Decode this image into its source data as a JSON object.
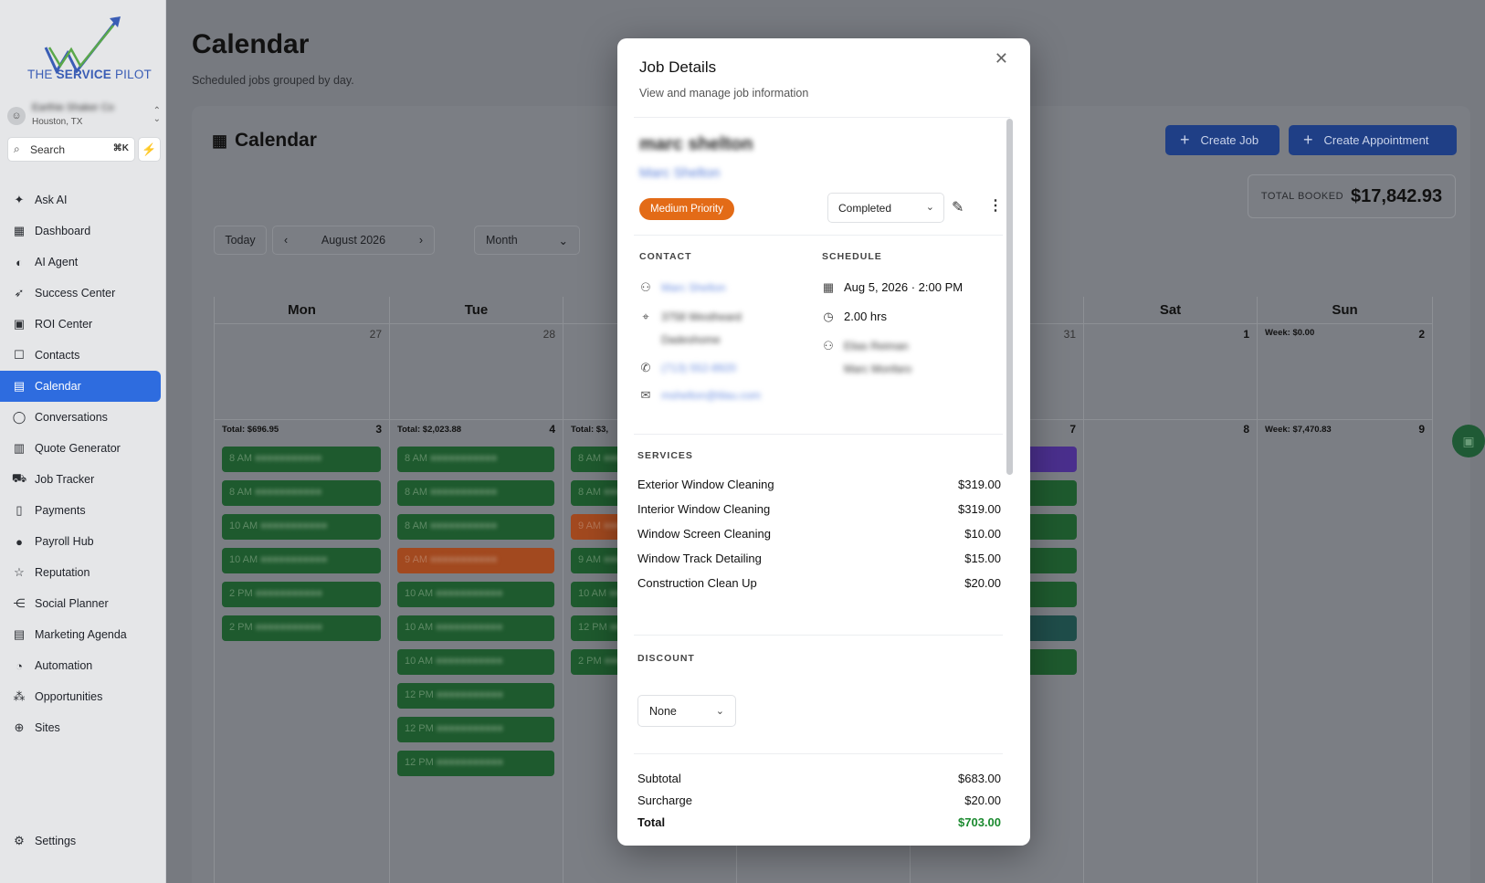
{
  "brand": {
    "name_prefix": "THE ",
    "name_bold": "SERVICE",
    "name_suffix": " PILOT",
    "accent": "#2e6cdf"
  },
  "account": {
    "name": "Earthie Shaker Co",
    "city": "Houston, TX"
  },
  "search": {
    "label": "Search",
    "shortcut": "⌘K"
  },
  "nav": [
    {
      "label": "Ask AI",
      "icon": "sparkle-icon",
      "glyph": "✦"
    },
    {
      "label": "Dashboard",
      "icon": "dashboard-icon",
      "glyph": "▦"
    },
    {
      "label": "AI Agent",
      "icon": "brain-icon",
      "glyph": "◐"
    },
    {
      "label": "Success Center",
      "icon": "rocket-icon",
      "glyph": "➶"
    },
    {
      "label": "ROI Center",
      "icon": "ai-badge-icon",
      "glyph": "▣"
    },
    {
      "label": "Contacts",
      "icon": "contacts-icon",
      "glyph": "☐"
    },
    {
      "label": "Calendar",
      "icon": "calendar-icon",
      "glyph": "▤",
      "active": true
    },
    {
      "label": "Conversations",
      "icon": "chat-icon",
      "glyph": "◯"
    },
    {
      "label": "Quote Generator",
      "icon": "quote-icon",
      "glyph": "▥"
    },
    {
      "label": "Job Tracker",
      "icon": "tracker-icon",
      "glyph": "⛟"
    },
    {
      "label": "Payments",
      "icon": "receipt-icon",
      "glyph": "▯"
    },
    {
      "label": "Payroll Hub",
      "icon": "payroll-icon",
      "glyph": "●"
    },
    {
      "label": "Reputation",
      "icon": "star-icon",
      "glyph": "☆"
    },
    {
      "label": "Social Planner",
      "icon": "share-icon",
      "glyph": "⋲"
    },
    {
      "label": "Marketing Agenda",
      "icon": "agenda-icon",
      "glyph": "▤"
    },
    {
      "label": "Automation",
      "icon": "automation-icon",
      "glyph": "◔"
    },
    {
      "label": "Opportunities",
      "icon": "network-icon",
      "glyph": "⁂"
    },
    {
      "label": "Sites",
      "icon": "globe-icon",
      "glyph": "⊕"
    }
  ],
  "settings": {
    "label": "Settings",
    "glyph": "⚙"
  },
  "page": {
    "title": "Calendar",
    "subtitle": "Scheduled jobs grouped by day."
  },
  "calendar": {
    "card_title": "Calendar",
    "create_job": "Create Job",
    "create_appointment": "Create Appointment",
    "total_booked_label": "TOTAL BOOKED",
    "total_booked_value": "$17,842.93",
    "today": "Today",
    "period": "August 2026",
    "view": "Month",
    "days": [
      "Mon",
      "Tue",
      "",
      "",
      "",
      "Sat",
      "Sun"
    ],
    "week1_nums": [
      "27",
      "28",
      "",
      "",
      "31",
      "1",
      "2"
    ],
    "week1_total_sun": "Week: $0.00",
    "week2_nums": [
      "3",
      "4",
      "",
      "",
      "7",
      "8",
      "9"
    ],
    "week2_totals": [
      "Total: $696.95",
      "Total: $2,023.88",
      "Total: $3,",
      "",
      "",
      "",
      "Week: $7,470.83"
    ],
    "events_mon": [
      "8 AM",
      "8 AM",
      "10 AM",
      "10 AM",
      "2 PM",
      "2 PM"
    ],
    "events_tue": [
      "8 AM",
      "8 AM",
      "8 AM",
      "9 AM",
      "10 AM",
      "10 AM",
      "10 AM",
      "12 PM",
      "12 PM",
      "12 PM"
    ],
    "events_wed": [
      "8 AM",
      "8 AM",
      "9 AM",
      "9 AM",
      "10 AM",
      "12 PM",
      "2 PM"
    ]
  },
  "modal": {
    "title": "Job Details",
    "subtitle": "View and manage job information",
    "customer_name": "marc shelton",
    "customer_link": "Marc Shelton",
    "priority": "Medium Priority",
    "status": "Completed",
    "contact_label": "CONTACT",
    "schedule_label": "SCHEDULE",
    "contact_name": "Marc Shelton",
    "address_line1": "3758 Westheard",
    "address_line2": "Dadeshome",
    "phone": "(713) 552-8920",
    "email": "mshelton@tilau.com",
    "date": "Aug 5, 2026 · 2:00 PM",
    "duration": "2.00 hrs",
    "assignee1": "Elias Reiman",
    "assignee2": "Marc Monfaro",
    "services_label": "SERVICES",
    "services": [
      {
        "name": "Exterior Window Cleaning",
        "price": "$319.00"
      },
      {
        "name": "Interior Window Cleaning",
        "price": "$319.00"
      },
      {
        "name": "Window Screen Cleaning",
        "price": "$10.00"
      },
      {
        "name": "Window Track Detailing",
        "price": "$15.00"
      },
      {
        "name": "Construction Clean Up",
        "price": "$20.00"
      }
    ],
    "discount_label": "DISCOUNT",
    "discount_value": "None",
    "subtotal_label": "Subtotal",
    "subtotal": "$683.00",
    "surcharge_label": "Surcharge",
    "surcharge": "$20.00",
    "total_label": "Total",
    "total": "$703.00"
  }
}
